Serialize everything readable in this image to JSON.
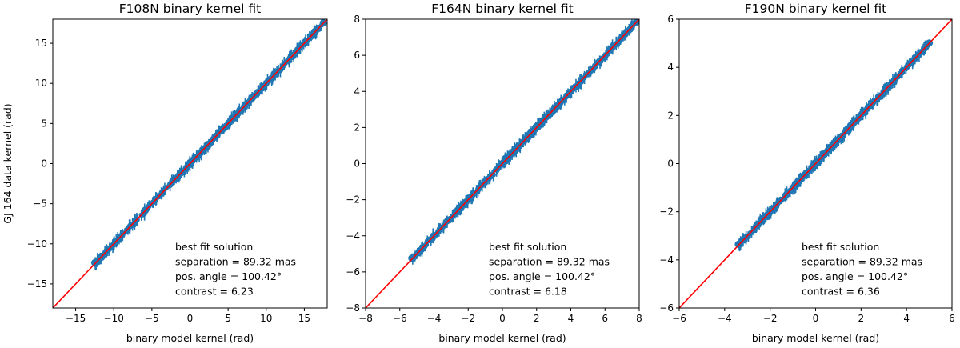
{
  "chart_data": [
    {
      "type": "scatter",
      "title": "F108N binary kernel fit",
      "xlabel": "binary model kernel (rad)",
      "ylabel": "GJ 164 data kernel (rad)",
      "xlim": [
        -18,
        18
      ],
      "ylim": [
        -18,
        18
      ],
      "xticks": [
        -15,
        -10,
        -5,
        0,
        5,
        10,
        15
      ],
      "yticks": [
        -15,
        -10,
        -5,
        0,
        5,
        10,
        15
      ],
      "xtick_labels": [
        "−15",
        "−10",
        "−5",
        "0",
        "5",
        "10",
        "15"
      ],
      "ytick_labels": [
        "−15",
        "−10",
        "−5",
        "0",
        "5",
        "10",
        "15"
      ],
      "data_range": [
        -12.5,
        17.5
      ],
      "model_line": {
        "slope": 1,
        "intercept": 0,
        "color": "#ff0000"
      },
      "points_color": "#1f77b4",
      "annotation": [
        "best fit solution",
        "separation = 89.32 mas",
        "pos. angle = 100.42°",
        "contrast = 6.23"
      ]
    },
    {
      "type": "scatter",
      "title": "F164N binary kernel fit",
      "xlabel": "binary model kernel (rad)",
      "ylabel": "",
      "xlim": [
        -8,
        8
      ],
      "ylim": [
        -8,
        8
      ],
      "xticks": [
        -8,
        -6,
        -4,
        -2,
        0,
        2,
        4,
        6,
        8
      ],
      "yticks": [
        -8,
        -6,
        -4,
        -2,
        0,
        2,
        4,
        6,
        8
      ],
      "xtick_labels": [
        "−8",
        "−6",
        "−4",
        "−2",
        "0",
        "2",
        "4",
        "6",
        "8"
      ],
      "ytick_labels": [
        "−8",
        "−6",
        "−4",
        "−2",
        "0",
        "2",
        "4",
        "6",
        "8"
      ],
      "data_range": [
        -5.3,
        7.8
      ],
      "model_line": {
        "slope": 1,
        "intercept": 0,
        "color": "#ff0000"
      },
      "points_color": "#1f77b4",
      "annotation": [
        "best fit solution",
        "separation = 89.32 mas",
        "pos. angle = 100.42°",
        "contrast = 6.18"
      ]
    },
    {
      "type": "scatter",
      "title": "F190N binary kernel fit",
      "xlabel": "binary model kernel (rad)",
      "ylabel": "",
      "xlim": [
        -6,
        6
      ],
      "ylim": [
        -6,
        6
      ],
      "xticks": [
        -6,
        -4,
        -2,
        0,
        2,
        4,
        6
      ],
      "yticks": [
        -6,
        -4,
        -2,
        0,
        2,
        4,
        6
      ],
      "xtick_labels": [
        "−6",
        "−4",
        "−2",
        "0",
        "2",
        "4",
        "6"
      ],
      "ytick_labels": [
        "−6",
        "−4",
        "−2",
        "0",
        "2",
        "4",
        "6"
      ],
      "data_range": [
        -3.4,
        5.0
      ],
      "model_line": {
        "slope": 1,
        "intercept": 0,
        "color": "#ff0000"
      },
      "points_color": "#1f77b4",
      "annotation": [
        "best fit solution",
        "separation = 89.32 mas",
        "pos. angle = 100.42°",
        "contrast   = 6.36"
      ]
    }
  ]
}
